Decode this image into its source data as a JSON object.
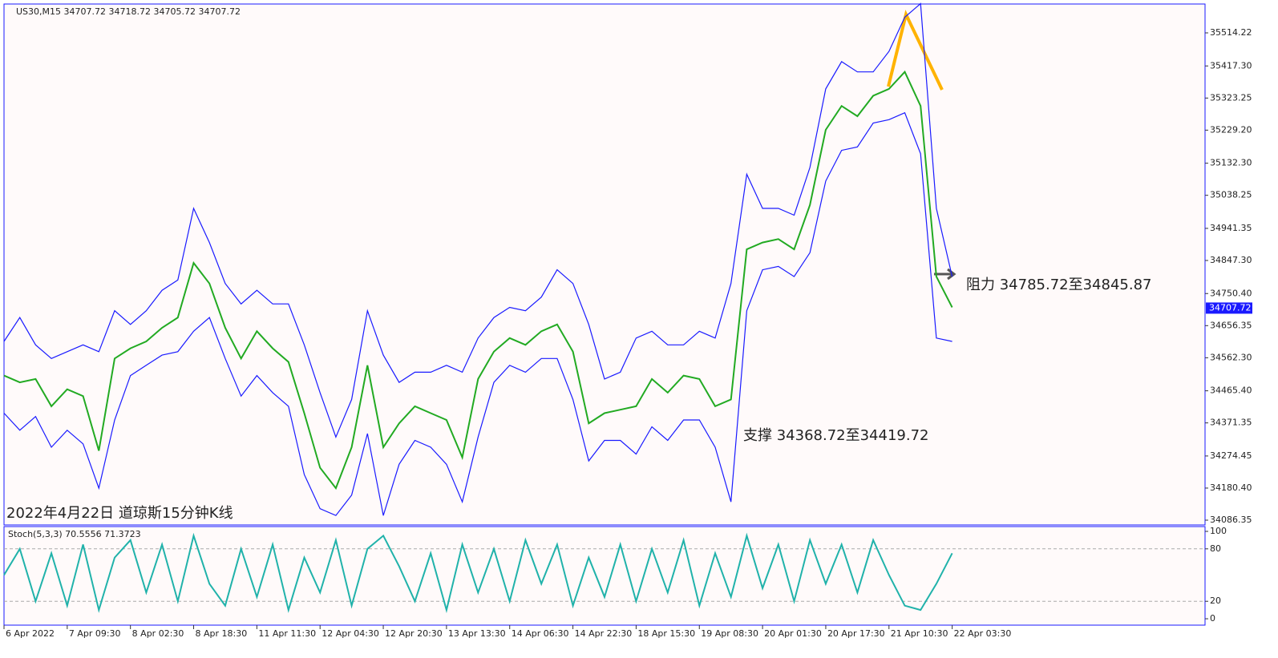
{
  "chart_data": [
    {
      "type": "line",
      "header": "US30,M15  34707.72 34718.72 34705.72 34707.72",
      "title": "2022年4月22日 道琼斯15分钟K线",
      "annotations": [
        "阻力 34785.72至34845.87",
        "支撑 34368.72至34419.72"
      ],
      "last_price": 34707.72,
      "x": [
        0,
        1,
        2,
        3,
        4,
        5,
        6,
        7,
        8,
        9,
        10,
        11,
        12,
        13,
        14,
        15,
        16,
        17,
        18,
        19,
        20,
        21,
        22,
        23,
        24,
        25,
        26,
        27,
        28,
        29,
        30,
        31,
        32,
        33,
        34,
        35,
        36,
        37,
        38,
        39,
        40,
        41,
        42,
        43,
        44,
        45,
        46,
        47,
        48,
        49,
        50,
        51,
        52,
        53,
        54,
        55,
        56,
        57,
        58,
        59,
        60
      ],
      "xlim": [
        0,
        76
      ],
      "xticks": [
        {
          "value": 0,
          "label": "6 Apr 2022"
        },
        {
          "value": 4,
          "label": "7 Apr 09:30"
        },
        {
          "value": 8,
          "label": "8 Apr 02:30"
        },
        {
          "value": 12,
          "label": "8 Apr 18:30"
        },
        {
          "value": 16,
          "label": "11 Apr 11:30"
        },
        {
          "value": 20,
          "label": "12 Apr 04:30"
        },
        {
          "value": 24,
          "label": "12 Apr 20:30"
        },
        {
          "value": 28,
          "label": "13 Apr 13:30"
        },
        {
          "value": 32,
          "label": "14 Apr 06:30"
        },
        {
          "value": 36,
          "label": "14 Apr 22:30"
        },
        {
          "value": 40,
          "label": "18 Apr 15:30"
        },
        {
          "value": 44,
          "label": "19 Apr 08:30"
        },
        {
          "value": 48,
          "label": "20 Apr 01:30"
        },
        {
          "value": 52,
          "label": "20 Apr 17:30"
        },
        {
          "value": 56,
          "label": "21 Apr 10:30"
        },
        {
          "value": 60,
          "label": "22 Apr 03:30"
        }
      ],
      "ylim": [
        34072.3,
        35598.8
      ],
      "yticks": [
        35514.22,
        {
          "value": 35417.3,
          "label": "35417.30"
        },
        35323.25,
        {
          "value": 35229.2,
          "label": "35229.20"
        },
        {
          "value": 35132.3,
          "label": "35132.30"
        },
        35038.25,
        34941.35,
        {
          "value": 34847.3,
          "label": "34847.30"
        },
        {
          "value": 34750.4,
          "label": "34750.40"
        },
        34656.35,
        {
          "value": 34562.3,
          "label": "34562.30"
        },
        {
          "value": 34465.4,
          "label": "34465.40"
        },
        34371.35,
        34274.45,
        {
          "value": 34180.4,
          "label": "34180.40"
        },
        34086.35
      ],
      "series": [
        {
          "color": "#22aa22",
          "values": [
            34510,
            34490,
            34500,
            34420,
            34470,
            34450,
            34290,
            34560,
            34590,
            34610,
            34650,
            34680,
            34840,
            34780,
            34650,
            34560,
            34640,
            34590,
            34550,
            34400,
            34240,
            34180,
            34300,
            34540,
            34300,
            34370,
            34420,
            34400,
            34380,
            34270,
            34500,
            34580,
            34620,
            34600,
            34640,
            34660,
            34580,
            34370,
            34400,
            34410,
            34420,
            34500,
            34460,
            34510,
            34500,
            34420,
            34440,
            34880,
            34900,
            34910,
            34880,
            35010,
            35230,
            35300,
            35270,
            35330,
            35350,
            35400,
            35300,
            34800,
            34710
          ]
        },
        {
          "color": "#1a1aff",
          "values": [
            34610,
            34680,
            34600,
            34560,
            34580,
            34600,
            34580,
            34700,
            34660,
            34700,
            34760,
            34790,
            35000,
            34900,
            34780,
            34720,
            34760,
            34720,
            34720,
            34600,
            34460,
            34330,
            34440,
            34700,
            34570,
            34490,
            34520,
            34520,
            34540,
            34520,
            34620,
            34680,
            34710,
            34700,
            34740,
            34820,
            34780,
            34660,
            34500,
            34520,
            34620,
            34640,
            34600,
            34600,
            34640,
            34620,
            34780,
            35100,
            35000,
            35000,
            34980,
            35120,
            35350,
            35430,
            35400,
            35400,
            35460,
            35560,
            35600,
            35000,
            34800
          ]
        },
        {
          "color": "#1a1aff",
          "values": [
            34400,
            34350,
            34390,
            34300,
            34350,
            34310,
            34180,
            34380,
            34510,
            34540,
            34570,
            34580,
            34640,
            34680,
            34560,
            34450,
            34510,
            34460,
            34420,
            34220,
            34120,
            34100,
            34160,
            34340,
            34100,
            34250,
            34320,
            34300,
            34250,
            34140,
            34330,
            34490,
            34540,
            34520,
            34560,
            34560,
            34440,
            34260,
            34320,
            34320,
            34280,
            34360,
            34320,
            34380,
            34380,
            34300,
            34140,
            34700,
            34820,
            34830,
            34800,
            34870,
            35080,
            35170,
            35180,
            35250,
            35260,
            35280,
            35160,
            34620,
            34610
          ]
        }
      ]
    },
    {
      "type": "line",
      "title": "Stoch(5,3,3) 70.5556 71.3723",
      "x": [
        0,
        1,
        2,
        3,
        4,
        5,
        6,
        7,
        8,
        9,
        10,
        11,
        12,
        13,
        14,
        15,
        16,
        17,
        18,
        19,
        20,
        21,
        22,
        23,
        24,
        25,
        26,
        27,
        28,
        29,
        30,
        31,
        32,
        33,
        34,
        35,
        36,
        37,
        38,
        39,
        40,
        41,
        42,
        43,
        44,
        45,
        46,
        47,
        48,
        49,
        50,
        51,
        52,
        53,
        54,
        55,
        56,
        57,
        58,
        59,
        60
      ],
      "xlim": [
        0,
        76
      ],
      "ylim": [
        -7.3,
        105.5
      ],
      "yticks": [
        100,
        80,
        20,
        0
      ],
      "levels": [
        80,
        20
      ],
      "series": [
        {
          "color": "#20b2aa",
          "values": [
            50,
            80,
            20,
            75,
            15,
            85,
            10,
            70,
            90,
            30,
            85,
            20,
            95,
            40,
            15,
            80,
            25,
            85,
            10,
            70,
            30,
            90,
            15,
            80,
            95,
            60,
            20,
            75,
            10,
            85,
            30,
            80,
            20,
            90,
            40,
            85,
            15,
            70,
            25,
            85,
            20,
            80,
            30,
            90,
            15,
            75,
            25,
            95,
            35,
            85,
            20,
            90,
            40,
            85,
            30,
            90,
            50,
            15,
            10,
            40,
            75
          ]
        }
      ]
    }
  ]
}
